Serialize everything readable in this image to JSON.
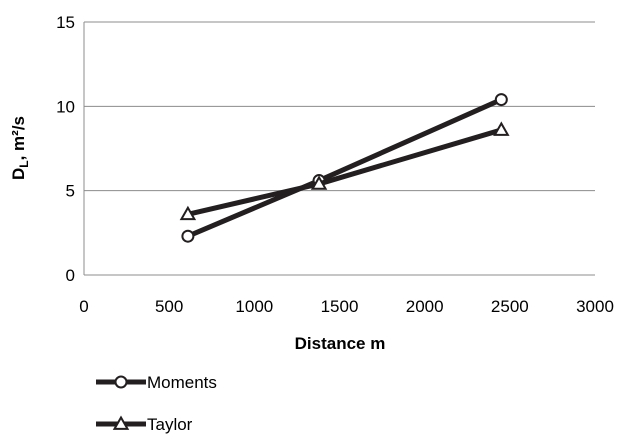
{
  "chart_data": {
    "type": "line",
    "xlabel": "Distance m",
    "ylabel": {
      "main": "D",
      "sub": "L",
      "rest": ", m²/s"
    },
    "xlim": [
      0,
      3000
    ],
    "ylim": [
      0,
      15
    ],
    "xticks": [
      0,
      500,
      1000,
      1500,
      2000,
      2500,
      3000
    ],
    "yticks": [
      0,
      5,
      10,
      15
    ],
    "grid": "horizontal",
    "legend": "bottom-left",
    "series": [
      {
        "name": "Moments",
        "marker": "circle",
        "color": "#231f20",
        "x": [
          610,
          1380,
          2450
        ],
        "y": [
          2.3,
          5.6,
          10.4
        ]
      },
      {
        "name": "Taylor",
        "marker": "triangle",
        "color": "#231f20",
        "x": [
          610,
          1380,
          2450
        ],
        "y": [
          3.6,
          5.4,
          8.6
        ]
      }
    ]
  }
}
